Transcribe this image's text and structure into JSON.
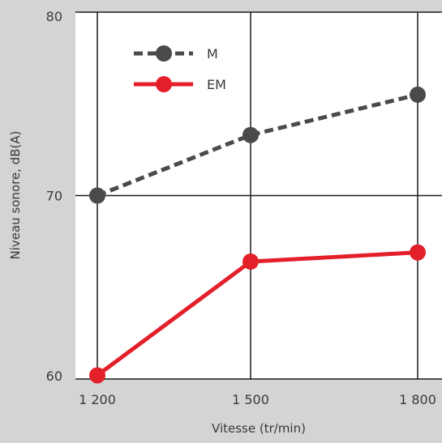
{
  "chart_data": {
    "type": "line",
    "title": "",
    "xlabel": "Vitesse (tr/min)",
    "ylabel": "Niveau sonore, dB(A)",
    "categories": [
      "1 200",
      "1 500",
      "1 800"
    ],
    "x": [
      1200,
      1500,
      1800
    ],
    "ylim": [
      60,
      80
    ],
    "yticks": [
      "60",
      "70",
      "80"
    ],
    "ytick_values": [
      60,
      70,
      80
    ],
    "grid": true,
    "legend_placement": "top-left",
    "series": [
      {
        "name": "M",
        "values": [
          70.0,
          73.3,
          75.5
        ],
        "color": "#4a4a4a",
        "style": "dashed"
      },
      {
        "name": "EM",
        "values": [
          60.2,
          66.4,
          66.9
        ],
        "color": "#e3202a",
        "style": "solid"
      }
    ]
  },
  "colors": {
    "background": "#d4d4d4",
    "plot_area": "#ffffff",
    "grid": "#1a1a1a",
    "text": "#3a3a3a"
  }
}
